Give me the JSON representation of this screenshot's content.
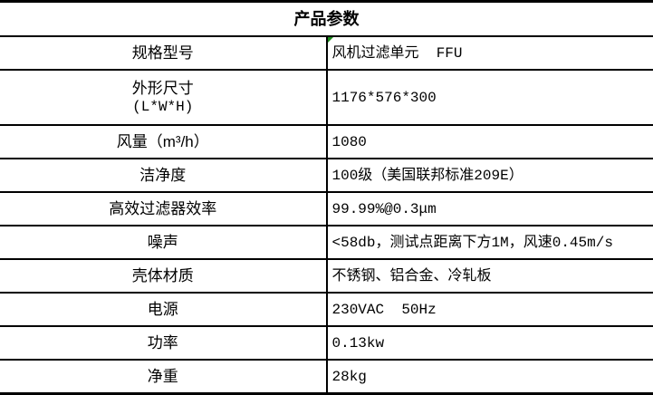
{
  "title": "产品参数",
  "rows": [
    {
      "label": "规格型号",
      "value": "风机过滤单元  FFU"
    },
    {
      "label": "外形尺寸",
      "label2": "(L*W*H)",
      "value": "1176*576*300"
    },
    {
      "label": "风量（m³/h）",
      "value": "1080"
    },
    {
      "label": "洁净度",
      "value": "100级（美国联邦标准209E）"
    },
    {
      "label": "高效过滤器效率",
      "value": "99.99%@0.3μm"
    },
    {
      "label": "噪声",
      "value": "<58db，测试点距离下方1M，风速0.45m/s"
    },
    {
      "label": "壳体材质",
      "value": "不锈钢、铝合金、冷轧板"
    },
    {
      "label": "电源",
      "value": "230VAC  50Hz"
    },
    {
      "label": "功率",
      "value": "0.13kw"
    },
    {
      "label": "净重",
      "value": "28kg"
    }
  ],
  "colors": {
    "border": "#000000",
    "comment_marker": "#1a8a1a"
  }
}
